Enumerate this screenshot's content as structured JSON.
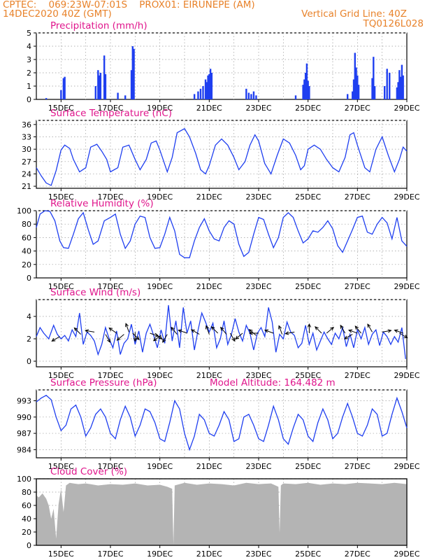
{
  "header": {
    "line1_left": "CPTEC:    069:23W-07:01S    PROX01: EIRUNEPE (AM)",
    "line2_left": "14DEC2020 40Z (GMT)",
    "line2_right": "Vertical Grid Line: 40Z",
    "line3_right": "TQ0126L028"
  },
  "colors": {
    "header": "#e8822a",
    "panel_title": "#e0158c",
    "series": "#1f3ff0",
    "cloud_fill": "#b4b4b4",
    "wind_arrow": "#000000",
    "grid": "#9a9a9a"
  },
  "x_ticks": [
    "15DEC",
    "17DEC",
    "19DEC",
    "21DEC",
    "23DEC",
    "25DEC",
    "27DEC",
    "29DEC"
  ],
  "chart_data": [
    {
      "id": "precip",
      "type": "bar",
      "title": "Precipitation (mm/h)",
      "yticks": [
        "0",
        "1",
        "2",
        "3",
        "4",
        "5"
      ],
      "ylim": [
        0,
        5
      ],
      "xlim_days": [
        14.0,
        29.0
      ],
      "x_day": [
        14.4,
        15.0,
        15.1,
        15.15,
        16.4,
        16.5,
        16.55,
        16.6,
        16.75,
        16.8,
        17.3,
        17.6,
        17.85,
        17.9,
        17.95,
        20.4,
        20.55,
        20.65,
        20.75,
        20.85,
        20.9,
        20.95,
        21.0,
        21.05,
        21.1,
        22.5,
        22.6,
        22.7,
        22.8,
        22.9,
        24.5,
        24.8,
        24.85,
        24.9,
        24.95,
        25.0,
        25.05,
        26.6,
        26.8,
        26.85,
        26.9,
        26.95,
        27.0,
        27.05,
        27.6,
        27.65,
        27.7,
        28.1,
        28.2,
        28.3,
        28.6,
        28.65,
        28.7,
        28.75,
        28.8,
        28.85
      ],
      "values": [
        0.1,
        0.7,
        1.6,
        1.7,
        1.0,
        2.2,
        1.8,
        2.0,
        3.3,
        1.9,
        0.5,
        0.3,
        2.2,
        4.0,
        3.8,
        0.4,
        0.6,
        0.8,
        1.0,
        1.5,
        1.3,
        1.8,
        1.9,
        2.3,
        2.0,
        0.8,
        0.5,
        0.4,
        0.6,
        0.3,
        0.3,
        1.1,
        1.5,
        2.0,
        2.7,
        1.4,
        1.0,
        0.4,
        0.6,
        1.5,
        3.5,
        2.4,
        1.8,
        1.1,
        1.6,
        3.2,
        1.0,
        1.0,
        2.3,
        2.0,
        0.9,
        1.3,
        2.2,
        1.7,
        2.6,
        1.8
      ]
    },
    {
      "id": "temp",
      "type": "line",
      "title": "Surface Temperature (nC)",
      "yticks": [
        "21",
        "24",
        "27",
        "30",
        "33",
        "36"
      ],
      "ylim": [
        20.5,
        37
      ],
      "xlim_days": [
        14.0,
        29.0
      ],
      "x_day": [
        14.0,
        14.2,
        14.4,
        14.6,
        14.8,
        15.0,
        15.15,
        15.35,
        15.5,
        15.75,
        16.0,
        16.2,
        16.45,
        16.65,
        16.85,
        17.0,
        17.3,
        17.5,
        17.75,
        18.0,
        18.2,
        18.45,
        18.65,
        18.85,
        19.0,
        19.3,
        19.5,
        19.7,
        20.0,
        20.2,
        20.45,
        20.65,
        20.85,
        21.0,
        21.25,
        21.5,
        21.75,
        22.0,
        22.2,
        22.45,
        22.65,
        22.85,
        23.0,
        23.25,
        23.5,
        23.75,
        24.0,
        24.25,
        24.5,
        24.7,
        24.85,
        25.0,
        25.25,
        25.5,
        25.75,
        26.0,
        26.25,
        26.5,
        26.7,
        26.85,
        27.0,
        27.3,
        27.5,
        27.75,
        28.0,
        28.25,
        28.5,
        28.7,
        28.85,
        29.0
      ],
      "values": [
        25.5,
        23.5,
        21.8,
        21.2,
        24.8,
        29.8,
        31.0,
        30.2,
        27.5,
        24.5,
        25.5,
        30.5,
        31.2,
        29.5,
        27.5,
        24.5,
        25.5,
        30.5,
        31.0,
        27.5,
        25.0,
        27.5,
        31.5,
        32.0,
        29.8,
        24.5,
        28.0,
        34.0,
        35.0,
        33.0,
        29.0,
        25.0,
        24.0,
        26.0,
        31.0,
        32.5,
        31.0,
        28.0,
        25.0,
        27.0,
        31.0,
        33.5,
        32.0,
        26.5,
        24.0,
        28.5,
        32.5,
        31.5,
        28.5,
        25.0,
        26.0,
        30.0,
        31.0,
        30.0,
        27.5,
        25.5,
        24.5,
        28.0,
        33.5,
        34.0,
        31.0,
        25.5,
        24.5,
        30.0,
        33.0,
        28.5,
        24.5,
        27.5,
        30.5,
        29.5
      ]
    },
    {
      "id": "rh",
      "type": "line",
      "title": "Relative Humidity (%)",
      "yticks": [
        "0",
        "20",
        "40",
        "60",
        "80",
        "100"
      ],
      "ylim": [
        0,
        100
      ],
      "xlim_days": [
        14.0,
        29.0
      ],
      "x_day": [
        14.0,
        14.15,
        14.35,
        14.55,
        14.75,
        14.95,
        15.1,
        15.3,
        15.5,
        15.7,
        15.9,
        16.1,
        16.3,
        16.5,
        16.75,
        17.0,
        17.2,
        17.4,
        17.6,
        17.8,
        18.0,
        18.2,
        18.4,
        18.6,
        18.8,
        19.0,
        19.2,
        19.4,
        19.6,
        19.8,
        20.0,
        20.2,
        20.4,
        20.6,
        20.8,
        21.0,
        21.2,
        21.4,
        21.6,
        21.8,
        22.0,
        22.2,
        22.4,
        22.6,
        22.8,
        23.0,
        23.2,
        23.4,
        23.6,
        23.8,
        24.0,
        24.2,
        24.4,
        24.6,
        24.8,
        25.0,
        25.2,
        25.4,
        25.6,
        25.8,
        26.0,
        26.2,
        26.4,
        26.6,
        26.8,
        27.0,
        27.2,
        27.4,
        27.6,
        27.8,
        28.0,
        28.2,
        28.4,
        28.6,
        28.8,
        29.0
      ],
      "values": [
        75,
        95,
        100,
        99,
        85,
        55,
        45,
        44,
        65,
        88,
        97,
        72,
        50,
        55,
        85,
        90,
        95,
        65,
        44,
        55,
        80,
        92,
        90,
        60,
        44,
        45,
        65,
        90,
        70,
        35,
        30,
        30,
        55,
        75,
        88,
        70,
        58,
        55,
        75,
        85,
        80,
        50,
        32,
        38,
        65,
        90,
        87,
        65,
        45,
        60,
        90,
        97,
        90,
        70,
        52,
        58,
        70,
        68,
        75,
        85,
        73,
        48,
        38,
        55,
        72,
        90,
        92,
        68,
        65,
        80,
        90,
        82,
        58,
        90,
        55,
        47
      ]
    },
    {
      "id": "wind",
      "type": "line",
      "title": "Surface Wind (m/s)",
      "yticks": [
        "0",
        "2",
        "4"
      ],
      "ylim": [
        -0.5,
        5.5
      ],
      "xlim_days": [
        14.0,
        29.0
      ],
      "x_day": [
        14.0,
        14.15,
        14.3,
        14.5,
        14.7,
        14.85,
        15.0,
        15.15,
        15.3,
        15.45,
        15.6,
        15.75,
        15.9,
        16.05,
        16.2,
        16.35,
        16.5,
        16.65,
        16.8,
        16.95,
        17.1,
        17.25,
        17.4,
        17.55,
        17.7,
        17.85,
        18.0,
        18.15,
        18.3,
        18.45,
        18.6,
        18.75,
        18.9,
        19.05,
        19.2,
        19.35,
        19.5,
        19.65,
        19.8,
        19.95,
        20.1,
        20.25,
        20.4,
        20.55,
        20.7,
        20.85,
        21.0,
        21.15,
        21.3,
        21.45,
        21.6,
        21.75,
        21.9,
        22.05,
        22.2,
        22.35,
        22.5,
        22.65,
        22.8,
        22.95,
        23.1,
        23.25,
        23.4,
        23.55,
        23.7,
        23.85,
        24.0,
        24.15,
        24.3,
        24.45,
        24.6,
        24.75,
        24.9,
        25.05,
        25.2,
        25.35,
        25.5,
        25.65,
        25.8,
        25.95,
        26.1,
        26.25,
        26.4,
        26.55,
        26.7,
        26.85,
        27.0,
        27.15,
        27.3,
        27.45,
        27.6,
        27.75,
        27.9,
        28.05,
        28.2,
        28.35,
        28.5,
        28.65,
        28.8,
        28.95
      ],
      "values": [
        2.2,
        3.0,
        2.5,
        2.0,
        3.2,
        2.4,
        2.0,
        2.3,
        1.8,
        2.8,
        2.2,
        4.3,
        1.5,
        2.6,
        2.3,
        1.8,
        0.6,
        1.5,
        3.0,
        2.0,
        1.2,
        2.7,
        0.6,
        1.6,
        2.0,
        3.3,
        1.5,
        2.7,
        0.8,
        2.5,
        3.3,
        2.3,
        1.2,
        2.8,
        1.6,
        5.0,
        1.8,
        3.6,
        1.2,
        4.8,
        2.5,
        3.6,
        1.0,
        2.8,
        4.3,
        3.5,
        2.6,
        3.4,
        1.2,
        2.0,
        3.6,
        1.5,
        2.4,
        3.8,
        2.6,
        1.8,
        3.2,
        2.5,
        1.0,
        2.5,
        3.0,
        2.2,
        4.8,
        3.5,
        0.8,
        2.4,
        2.0,
        3.5,
        2.6,
        2.3,
        1.2,
        1.6,
        3.2,
        1.5,
        2.5,
        1.0,
        1.8,
        2.6,
        2.0,
        1.5,
        2.5,
        2.0,
        3.0,
        1.3,
        2.4,
        1.2,
        2.8,
        2.0,
        3.0,
        1.5,
        2.4,
        2.8,
        1.4,
        2.6,
        2.2,
        1.5,
        2.2,
        1.7,
        3.0,
        0.2
      ],
      "arrows_day": [
        14.95,
        15.8,
        16.35,
        16.8,
        17.25,
        17.55,
        17.75,
        17.9,
        18.0,
        18.6,
        18.8,
        19.05,
        19.3,
        19.7,
        20.1,
        20.6,
        21.0,
        21.35,
        21.7,
        21.85,
        22.35,
        22.9,
        23.0,
        23.6,
        23.95,
        24.45,
        25.05,
        25.55,
        25.75,
        26.5,
        26.8,
        27.0,
        27.15,
        27.6,
        28.0,
        28.7,
        28.85
      ],
      "arrows_deg": [
        150,
        225,
        190,
        60,
        215,
        140,
        250,
        45,
        90,
        20,
        40,
        145,
        120,
        230,
        200,
        210,
        250,
        225,
        230,
        60,
        140,
        220,
        180,
        200,
        250,
        170,
        270,
        225,
        320,
        240,
        150,
        200,
        230,
        240,
        350,
        30,
        200
      ],
      "arrows_y": [
        2.2,
        2.4,
        2.6,
        2.4,
        2.5,
        2.4,
        2.6,
        2.5,
        2.6,
        2.5,
        2.5,
        2.3,
        2.4,
        2.4,
        2.5,
        2.4,
        2.4,
        2.5,
        2.4,
        2.5,
        2.5,
        2.3,
        2.5,
        2.5,
        2.4,
        2.6,
        2.5,
        2.5,
        2.5,
        2.5,
        2.4,
        2.5,
        2.5,
        2.6,
        2.6,
        2.5,
        2.5
      ]
    },
    {
      "id": "press",
      "type": "line",
      "title": "Surface Pressure (hPa)",
      "extra_label": "Model Altitude: 164.482  m",
      "yticks": [
        "984",
        "987",
        "990",
        "993"
      ],
      "ylim": [
        982.5,
        995
      ],
      "xlim_days": [
        14.0,
        29.0
      ],
      "x_day": [
        14.0,
        14.2,
        14.4,
        14.6,
        14.8,
        15.0,
        15.2,
        15.4,
        15.6,
        15.8,
        16.0,
        16.2,
        16.4,
        16.6,
        16.8,
        17.0,
        17.2,
        17.4,
        17.6,
        17.8,
        18.0,
        18.2,
        18.4,
        18.6,
        18.8,
        19.0,
        19.2,
        19.4,
        19.6,
        19.8,
        20.0,
        20.2,
        20.4,
        20.6,
        20.8,
        21.0,
        21.2,
        21.4,
        21.6,
        21.8,
        22.0,
        22.2,
        22.4,
        22.6,
        22.8,
        23.0,
        23.2,
        23.4,
        23.6,
        23.8,
        24.0,
        24.2,
        24.4,
        24.6,
        24.8,
        25.0,
        25.2,
        25.4,
        25.6,
        25.8,
        26.0,
        26.2,
        26.4,
        26.6,
        26.8,
        27.0,
        27.2,
        27.4,
        27.6,
        27.8,
        28.0,
        28.2,
        28.4,
        28.6,
        28.8,
        29.0
      ],
      "values": [
        992.8,
        993.5,
        994.0,
        993.2,
        990.0,
        987.5,
        988.5,
        991.5,
        992.2,
        990.0,
        986.5,
        988.0,
        990.5,
        991.5,
        990.0,
        987.0,
        986.0,
        989.5,
        992.0,
        990.0,
        986.5,
        988.5,
        991.5,
        991.0,
        989.0,
        986.0,
        985.5,
        989.0,
        993.0,
        991.5,
        987.0,
        984.0,
        986.5,
        990.5,
        989.5,
        987.0,
        986.5,
        988.5,
        991.0,
        989.5,
        985.5,
        986.0,
        990.0,
        990.5,
        988.5,
        986.0,
        985.5,
        988.5,
        992.0,
        989.5,
        986.0,
        985.0,
        988.0,
        990.5,
        989.5,
        986.5,
        985.5,
        989.0,
        991.5,
        989.5,
        986.0,
        987.0,
        990.0,
        992.5,
        990.0,
        987.0,
        986.5,
        988.5,
        991.5,
        990.5,
        986.5,
        987.0,
        990.5,
        993.5,
        991.0,
        988.0
      ]
    },
    {
      "id": "cloud",
      "type": "area",
      "title": "Cloud Cover (%)",
      "yticks": [
        "0",
        "20",
        "40",
        "60",
        "80",
        "100"
      ],
      "ylim": [
        0,
        100
      ],
      "xlim_days": [
        14.0,
        29.0
      ],
      "x_day": [
        14.0,
        14.1,
        14.25,
        14.4,
        14.5,
        14.6,
        14.7,
        14.8,
        14.9,
        15.0,
        15.1,
        15.2,
        15.35,
        15.5,
        15.7,
        16.0,
        16.5,
        17.0,
        17.5,
        18.0,
        18.5,
        19.0,
        19.3,
        19.5,
        19.55,
        19.6,
        19.8,
        20.0,
        20.5,
        21.0,
        21.5,
        22.0,
        22.5,
        23.0,
        23.5,
        23.8,
        23.85,
        23.9,
        24.0,
        24.5,
        25.0,
        25.5,
        26.0,
        26.5,
        27.0,
        27.5,
        28.0,
        28.5,
        29.0
      ],
      "values": [
        75,
        72,
        78,
        70,
        60,
        40,
        55,
        10,
        62,
        85,
        50,
        90,
        94,
        93,
        92,
        93,
        90,
        92,
        91,
        93,
        90,
        91,
        88,
        85,
        1,
        90,
        92,
        94,
        91,
        93,
        92,
        90,
        94,
        92,
        93,
        88,
        18,
        90,
        93,
        92,
        94,
        91,
        93,
        92,
        94,
        93,
        92,
        94,
        92
      ]
    }
  ]
}
